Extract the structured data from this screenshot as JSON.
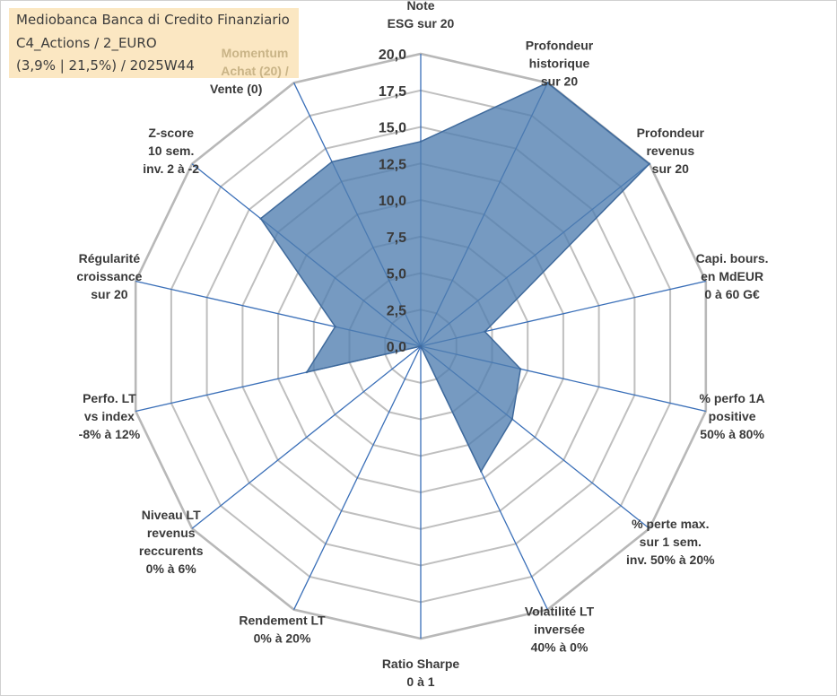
{
  "info": {
    "line1": "Mediobanca Banca di Credito Finanziario",
    "line2": "C4_Actions / 2_EURO",
    "line3": "(3,9% | 21,5%) / 2025W44",
    "momentum": "Momentum Achat (20) /",
    "vente": "Vente (0)"
  },
  "colors": {
    "fill": "#4f7db0",
    "edge": "#3f6a9c",
    "spoke": "#3a6fb8",
    "grid": "#bfbfbf",
    "gridOuter": "#b8b8b8",
    "label": "#3a3a3a"
  },
  "chart_data": {
    "type": "radar",
    "rmax": 20,
    "ticks": [
      "0,0",
      "2,5",
      "5,0",
      "7,5",
      "10,0",
      "12,5",
      "15,0",
      "17,5",
      "20,0"
    ],
    "axes": [
      {
        "label": [
          "Note",
          "ESG sur 20"
        ],
        "value": 14
      },
      {
        "label": [
          "Profondeur",
          "historique",
          "sur 20"
        ],
        "value": 20
      },
      {
        "label": [
          "Profondeur",
          "revenus",
          "sur 20"
        ],
        "value": 20
      },
      {
        "label": [
          "Capi. bours.",
          "en MdEUR",
          "0 à 60 G€"
        ],
        "value": 4.5
      },
      {
        "label": [
          "% perfo 1A",
          "positive",
          "50% à 80%"
        ],
        "value": 7
      },
      {
        "label": [
          "% perte max.",
          "sur 1 sem.",
          "inv. 50% à 20%"
        ],
        "value": 8
      },
      {
        "label": [
          "Volatilité LT",
          "inversée",
          "40% à 0%"
        ],
        "value": 9.5
      },
      {
        "label": [
          "Ratio Sharpe",
          "0 à 1"
        ],
        "value": 0
      },
      {
        "label": [
          "Rendement LT",
          "0% à 20%"
        ],
        "value": 0
      },
      {
        "label": [
          "Niveau LT",
          "revenus",
          "reccurents",
          "0% à 6%"
        ],
        "value": 0
      },
      {
        "label": [
          "Perfo. LT",
          "vs index",
          "-8% à 12%"
        ],
        "value": 8
      },
      {
        "label": [
          "Régularité",
          "croissance",
          "sur 20"
        ],
        "value": 6
      },
      {
        "label": [
          "Z-score",
          "10 sem.",
          "inv. 2 à -2"
        ],
        "value": 14
      },
      {
        "label": [
          "Momentum",
          "Achat (20) /",
          "Vente (0)"
        ],
        "value": 14
      }
    ]
  }
}
